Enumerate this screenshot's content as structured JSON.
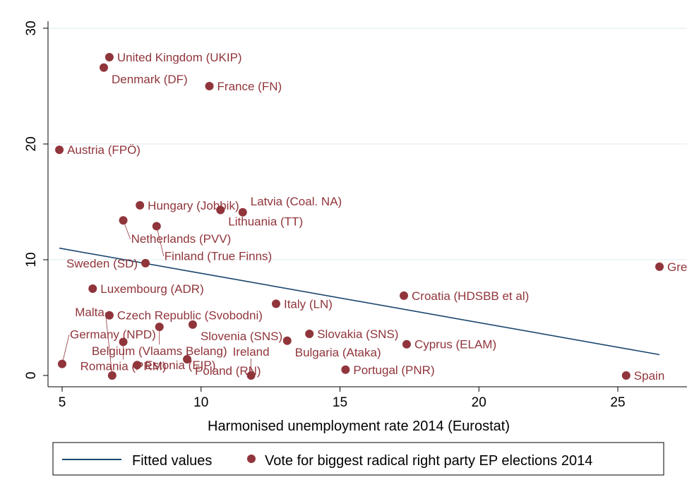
{
  "chart_data": {
    "type": "scatter",
    "xlabel": "Harmonised unemployment rate 2014 (Eurostat)",
    "ylabel": "",
    "xlim": [
      4.5,
      27
    ],
    "ylim": [
      -0.5,
      30.5
    ],
    "xticks": [
      "5",
      "10",
      "15",
      "20",
      "25"
    ],
    "yticks": [
      "0",
      "10",
      "20",
      "30"
    ],
    "grid": "horizontal",
    "legend_position": "bottom",
    "colors": {
      "points": "#90353b",
      "fit": "#1a476f",
      "grid": "#eaf2f3"
    },
    "series": [
      {
        "name": "Vote for biggest radical right party EP elections 2014",
        "points": [
          {
            "label": "United Kingdom (UKIP)",
            "x": 6.7,
            "y": 27.5
          },
          {
            "label": "Denmark (DF)",
            "x": 6.5,
            "y": 26.6
          },
          {
            "label": "France (FN)",
            "x": 10.3,
            "y": 25.0
          },
          {
            "label": "Austria (FPÖ)",
            "x": 4.9,
            "y": 19.5
          },
          {
            "label": "Hungary (Jobbik)",
            "x": 7.8,
            "y": 14.7
          },
          {
            "label": "Lithuania (TT)",
            "x": 10.7,
            "y": 14.3
          },
          {
            "label": "Latvia (Coal. NA)",
            "x": 11.5,
            "y": 14.1
          },
          {
            "label": "Netherlands (PVV)",
            "x": 7.2,
            "y": 13.4
          },
          {
            "label": "Finland (True Finns)",
            "x": 8.4,
            "y": 12.9
          },
          {
            "label": "Sweden (SD)",
            "x": 8.0,
            "y": 9.7
          },
          {
            "label": "Gre",
            "x": 26.5,
            "y": 9.4
          },
          {
            "label": "Luxembourg (ADR)",
            "x": 6.1,
            "y": 7.5
          },
          {
            "label": "Croatia (HDSBB et al)",
            "x": 17.3,
            "y": 6.9
          },
          {
            "label": "Italy (LN)",
            "x": 12.7,
            "y": 6.2
          },
          {
            "label": "Czech Republic (Svobodni)",
            "x": 6.7,
            "y": 5.2
          },
          {
            "label": "Slovenia (SNS)",
            "x": 9.7,
            "y": 4.4
          },
          {
            "label": "Belgium (Vlaams Belang)",
            "x": 8.5,
            "y": 4.2
          },
          {
            "label": "Slovakia (SNS)",
            "x": 13.9,
            "y": 3.6
          },
          {
            "label": "Bulgaria (Ataka)",
            "x": 13.1,
            "y": 3.0
          },
          {
            "label": "Romania (PRM)",
            "x": 7.2,
            "y": 2.9
          },
          {
            "label": "Cyprus (ELAM)",
            "x": 17.4,
            "y": 2.7
          },
          {
            "label": "Poland (RN)",
            "x": 9.5,
            "y": 1.4
          },
          {
            "label": "Germany (NPD)",
            "x": 5.0,
            "y": 1.0
          },
          {
            "label": "Estonia (EIP)",
            "x": 7.7,
            "y": 0.9
          },
          {
            "label": "Portugal (PNR)",
            "x": 15.2,
            "y": 0.5
          },
          {
            "label": "Malta",
            "x": 6.8,
            "y": 0.0
          },
          {
            "label": "Ireland",
            "x": 11.8,
            "y": 0.0
          },
          {
            "label": "Spain",
            "x": 25.3,
            "y": 0.0
          }
        ]
      },
      {
        "name": "Fitted values",
        "type": "line",
        "x": [
          4.9,
          26.5
        ],
        "y": [
          11.0,
          1.8
        ]
      }
    ]
  }
}
